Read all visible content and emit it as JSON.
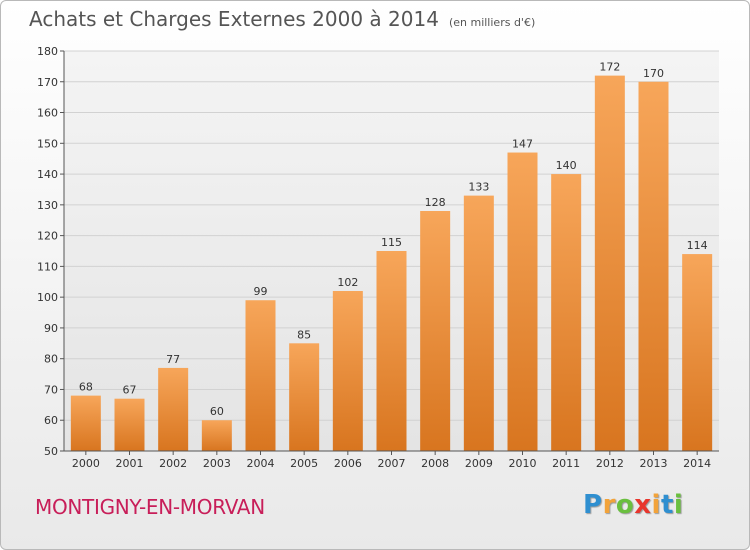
{
  "title": "Achats et Charges Externes 2000 à 2014",
  "unit": "(en milliers d'€)",
  "commune": "MONTIGNY-EN-MORVAN",
  "brand": {
    "letters": [
      "P",
      "r",
      "o",
      "x",
      "i",
      "t",
      "i"
    ],
    "colors": [
      "#2f8fd0",
      "#f2a33a",
      "#6abf3f",
      "#e8362d",
      "#f2a33a",
      "#2f8fd0",
      "#6abf3f"
    ]
  },
  "colors": {
    "bar_top": "#f7a65a",
    "bar_bottom": "#d8751f",
    "commune": "#c81e59"
  },
  "chart_data": {
    "type": "bar",
    "categories": [
      "2000",
      "2001",
      "2002",
      "2003",
      "2004",
      "2005",
      "2006",
      "2007",
      "2008",
      "2009",
      "2010",
      "2011",
      "2012",
      "2013",
      "2014"
    ],
    "values": [
      68,
      67,
      77,
      60,
      99,
      85,
      102,
      115,
      128,
      133,
      147,
      140,
      172,
      170,
      114
    ],
    "ylim": [
      50,
      180
    ],
    "yticks": [
      50,
      60,
      70,
      80,
      90,
      100,
      110,
      120,
      130,
      140,
      150,
      160,
      170,
      180
    ],
    "grid": true,
    "data_labels": true
  }
}
